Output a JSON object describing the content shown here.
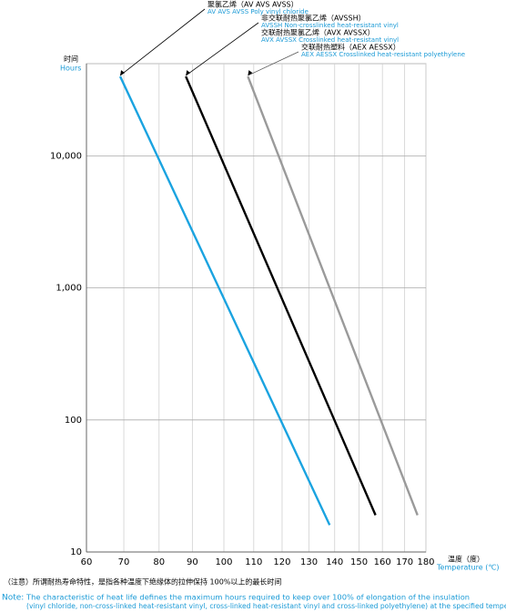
{
  "chart_data": {
    "type": "line",
    "y_label": "时间",
    "y_label_en": "Hours",
    "x_label": "温度（度）",
    "x_label_en": "Temperature (℃)",
    "xscale": "reciprocal-kelvin",
    "yscale": "log",
    "grid": true,
    "xlim": [
      60,
      180
    ],
    "xticks": [
      60,
      70,
      80,
      90,
      100,
      110,
      120,
      130,
      140,
      150,
      160,
      170,
      180
    ],
    "ylim": [
      10,
      50000
    ],
    "yticks": [
      10,
      100,
      {
        "value": 1000,
        "label": "1,000"
      },
      {
        "value": 10000,
        "label": "10,000"
      }
    ],
    "series": [
      {
        "color": "#1aa3e0",
        "x": [
          69,
          138
        ],
        "values": [
          40000,
          16
        ],
        "labels": [
          {
            "zh": "聚氯乙烯（AV AVS AVSS）",
            "en": "AV  AVS  AVSS   Poly vinyl chloride"
          }
        ]
      },
      {
        "color": "#000000",
        "x": [
          88,
          157
        ],
        "values": [
          40000,
          19
        ],
        "labels": [
          {
            "zh": "非交联耐热聚氯乙烯（AVSSH）",
            "en": "AVSSH   Non-crosslinked heat-resistant vinyl"
          },
          {
            "zh": "交联耐热聚氯乙烯（AVX AVSSX）",
            "en": "AVX  AVSSX   Crosslinked heat-resistant vinyl"
          }
        ]
      },
      {
        "color": "#9a9a9a",
        "x": [
          108,
          176
        ],
        "values": [
          40000,
          19
        ],
        "labels": [
          {
            "zh": "交联耐热塑料（AEX AESSX）",
            "en": "AEX  AESSX   Crosslinked heat-resistant polyethylene"
          }
        ]
      }
    ],
    "note_zh": "（注意）所谓耐热寿命特性，是指各种温度下绝缘体的拉伸保持 100%以上的最长时间",
    "note_label": "Note:",
    "note_en": [
      "The characteristic of heat life defines the maximum hours required to keep over 100% of elongation of the insulation",
      "(vinyl chloride, non-cross-linked heat-resistant vinyl, cross-linked heat-resistant vinyl and cross-linked polyethylene) at the specified temperature."
    ]
  }
}
